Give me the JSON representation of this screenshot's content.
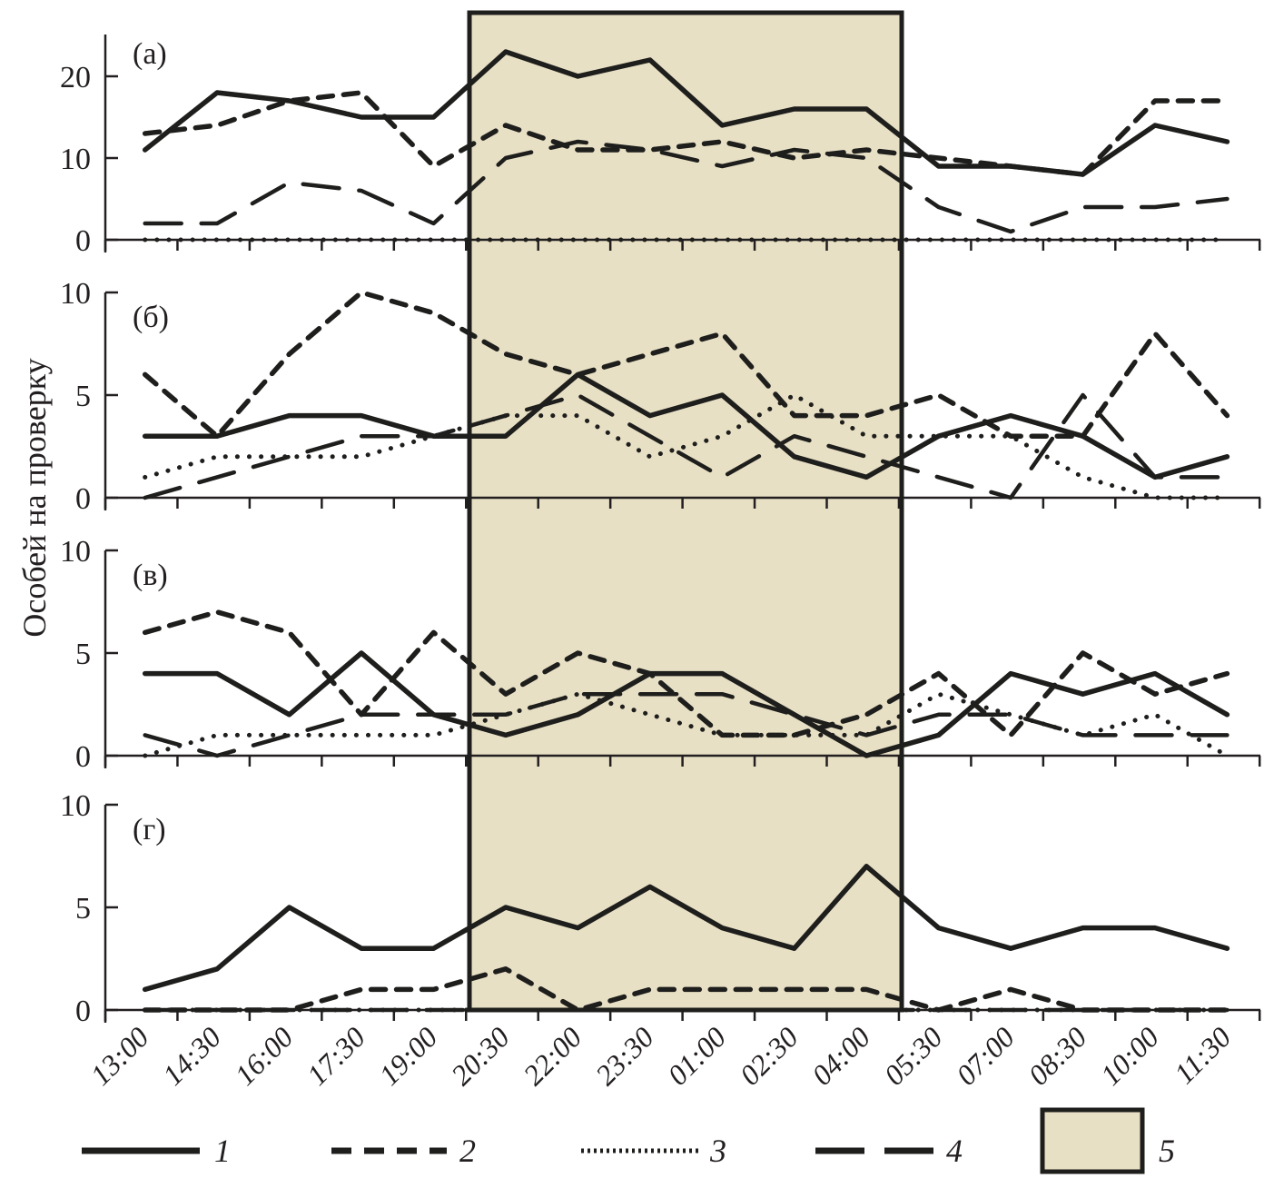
{
  "chart_data": {
    "type": "line",
    "ylabel": "Особей на проверку",
    "xlabel": "",
    "categories": [
      "13:00",
      "14:30",
      "16:00",
      "17:30",
      "19:00",
      "20:30",
      "22:00",
      "23:30",
      "01:00",
      "02:30",
      "04:00",
      "05:30",
      "07:00",
      "08:30",
      "10:00",
      "11:30"
    ],
    "shaded_region": {
      "legend_id": "5",
      "from": "20:30",
      "to": "05:30",
      "color": "#e8e0c5"
    },
    "legend": [
      {
        "id": "1",
        "label": "1",
        "style": "solid"
      },
      {
        "id": "2",
        "label": "2",
        "style": "dashed"
      },
      {
        "id": "3",
        "label": "3",
        "style": "dotted"
      },
      {
        "id": "4",
        "label": "4",
        "style": "long-dash"
      },
      {
        "id": "5",
        "label": "5",
        "style": "shaded-box"
      }
    ],
    "legend_placement": "bottom",
    "panels": [
      {
        "label": "(а)",
        "ylim": [
          0,
          25
        ],
        "yticks": [
          0,
          10,
          20
        ],
        "series": [
          {
            "name": "1",
            "values": [
              11,
              18,
              17,
              15,
              15,
              23,
              20,
              22,
              14,
              16,
              16,
              9,
              9,
              8,
              14,
              12
            ]
          },
          {
            "name": "2",
            "values": [
              13,
              14,
              17,
              18,
              9,
              14,
              11,
              11,
              12,
              10,
              11,
              10,
              9,
              8,
              17,
              17
            ]
          },
          {
            "name": "3",
            "values": [
              0,
              0,
              0,
              0,
              0,
              0,
              0,
              0,
              0,
              0,
              0,
              0,
              0,
              0,
              0,
              0
            ]
          },
          {
            "name": "4",
            "values": [
              2,
              2,
              7,
              6,
              2,
              10,
              12,
              11,
              9,
              11,
              10,
              4,
              1,
              4,
              4,
              5
            ]
          }
        ]
      },
      {
        "label": "(б)",
        "ylim": [
          0,
          10
        ],
        "yticks": [
          0,
          5,
          10
        ],
        "series": [
          {
            "name": "1",
            "values": [
              3,
              3,
              4,
              4,
              3,
              3,
              6,
              4,
              5,
              2,
              1,
              3,
              4,
              3,
              1,
              2
            ]
          },
          {
            "name": "2",
            "values": [
              6,
              3,
              7,
              10,
              9,
              7,
              6,
              7,
              8,
              4,
              4,
              5,
              3,
              3,
              8,
              4
            ]
          },
          {
            "name": "3",
            "values": [
              1,
              2,
              2,
              2,
              3,
              4,
              4,
              2,
              3,
              5,
              3,
              3,
              3,
              1,
              0,
              0
            ]
          },
          {
            "name": "4",
            "values": [
              0,
              1,
              2,
              3,
              3,
              4,
              5,
              3,
              1,
              3,
              2,
              1,
              0,
              5,
              1,
              1
            ]
          }
        ]
      },
      {
        "label": "(в)",
        "ylim": [
          0,
          10
        ],
        "yticks": [
          0,
          5,
          10
        ],
        "series": [
          {
            "name": "1",
            "values": [
              4,
              4,
              2,
              5,
              2,
              1,
              2,
              4,
              4,
              2,
              0,
              1,
              4,
              3,
              4,
              2
            ]
          },
          {
            "name": "2",
            "values": [
              6,
              7,
              6,
              2,
              6,
              3,
              5,
              4,
              1,
              1,
              2,
              4,
              1,
              5,
              3,
              4
            ]
          },
          {
            "name": "3",
            "values": [
              0,
              1,
              1,
              1,
              1,
              2,
              3,
              2,
              1,
              1,
              1,
              3,
              2,
              1,
              2,
              0
            ]
          },
          {
            "name": "4",
            "values": [
              1,
              0,
              1,
              2,
              2,
              2,
              3,
              3,
              3,
              2,
              1,
              2,
              2,
              1,
              1,
              1
            ]
          }
        ]
      },
      {
        "label": "(г)",
        "ylim": [
          0,
          10
        ],
        "yticks": [
          0,
          5,
          10
        ],
        "series": [
          {
            "name": "1",
            "values": [
              1,
              2,
              5,
              3,
              3,
              5,
              4,
              6,
              4,
              3,
              7,
              4,
              3,
              4,
              4,
              3
            ]
          },
          {
            "name": "2",
            "values": [
              0,
              0,
              0,
              1,
              1,
              2,
              0,
              1,
              1,
              1,
              1,
              0,
              1,
              0,
              0,
              0
            ]
          },
          {
            "name": "3",
            "values": [
              0,
              0,
              0,
              0,
              0,
              0,
              0,
              0,
              0,
              0,
              0,
              0,
              0,
              0,
              0,
              0
            ]
          },
          {
            "name": "4",
            "values": [
              0,
              0,
              0,
              0,
              0,
              0,
              0,
              0,
              0,
              0,
              0,
              0,
              0,
              0,
              0,
              0
            ]
          }
        ]
      }
    ]
  }
}
